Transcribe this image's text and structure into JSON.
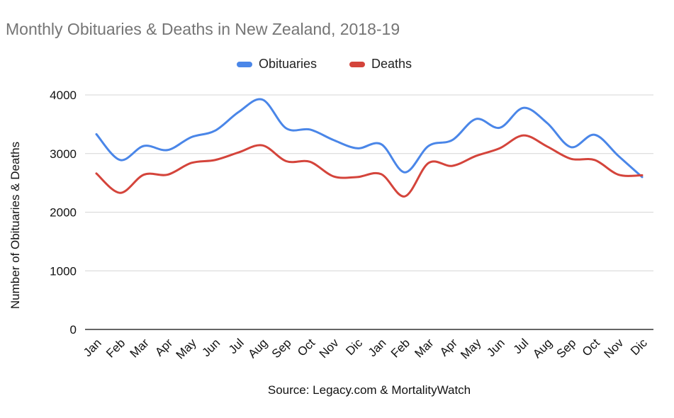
{
  "chart_data": {
    "type": "line",
    "title": "Monthly Obituaries & Deaths in New Zealand, 2018-19",
    "ylabel": "Number of Obituaries & Deaths",
    "xlabel": "Source: Legacy.com & MortalityWatch",
    "categories": [
      "Jan",
      "Feb",
      "Mar",
      "Apr",
      "May",
      "Jun",
      "Jul",
      "Aug",
      "Sep",
      "Oct",
      "Nov",
      "Dic",
      "Jan",
      "Feb",
      "Mar",
      "Apr",
      "May",
      "Jun",
      "Jul",
      "Aug",
      "Sep",
      "Oct",
      "Nov",
      "Dic"
    ],
    "yticks": [
      "0",
      "1000",
      "2000",
      "3000",
      "4000"
    ],
    "ylim": [
      0,
      4000
    ],
    "grid": true,
    "legend_position": "top",
    "series": [
      {
        "name": "Obituaries",
        "color": "#4a86e8",
        "values": [
          3330,
          2890,
          3130,
          3060,
          3280,
          3390,
          3710,
          3920,
          3430,
          3410,
          3230,
          3090,
          3160,
          2680,
          3130,
          3230,
          3590,
          3440,
          3780,
          3520,
          3110,
          3320,
          2960,
          2600
        ]
      },
      {
        "name": "Deaths",
        "color": "#d4443b",
        "values": [
          2660,
          2330,
          2640,
          2640,
          2840,
          2890,
          3020,
          3140,
          2870,
          2860,
          2610,
          2600,
          2650,
          2270,
          2840,
          2790,
          2960,
          3090,
          3310,
          3120,
          2910,
          2890,
          2640,
          2630
        ]
      }
    ]
  }
}
